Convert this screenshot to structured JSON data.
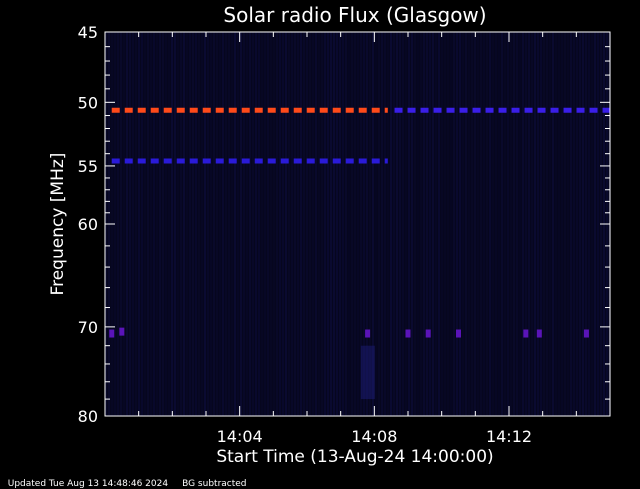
{
  "chart_data": {
    "type": "heatmap",
    "title": "Solar radio Flux (Glasgow)",
    "xlabel": "Start Time (13-Aug-24 14:00:00)",
    "ylabel": "Frequency [MHz]",
    "x_unit": "minutes after 14:00",
    "xlim": [
      0,
      15
    ],
    "ylim": [
      80,
      45
    ],
    "y_scale": "log",
    "x_ticks": [
      {
        "value": 4,
        "label": "14:04"
      },
      {
        "value": 8,
        "label": "14:08"
      },
      {
        "value": 12,
        "label": "14:12"
      }
    ],
    "y_ticks": [
      {
        "value": 45,
        "label": "45"
      },
      {
        "value": 50,
        "label": "50"
      },
      {
        "value": 55,
        "label": "55"
      },
      {
        "value": 60,
        "label": "60"
      },
      {
        "value": 70,
        "label": "70"
      },
      {
        "value": 80,
        "label": "80"
      }
    ],
    "bands": [
      {
        "frequency": 50.6,
        "x_start": 0.2,
        "x_end": 8.4,
        "color": "#ff4a1a"
      },
      {
        "frequency": 50.6,
        "x_start": 8.6,
        "x_end": 15.0,
        "color": "#3a1ee8"
      },
      {
        "frequency": 54.6,
        "x_start": 0.2,
        "x_end": 8.4,
        "color": "#2a1ad8"
      }
    ],
    "spots": [
      {
        "x": 0.2,
        "frequency": 70.7,
        "color": "#5a14b8"
      },
      {
        "x": 0.5,
        "frequency": 70.5,
        "color": "#5a14b8"
      },
      {
        "x": 7.8,
        "frequency": 70.7,
        "color": "#5a14b8"
      },
      {
        "x": 9.0,
        "frequency": 70.7,
        "color": "#5a14b8"
      },
      {
        "x": 9.6,
        "frequency": 70.7,
        "color": "#5a14b8"
      },
      {
        "x": 10.5,
        "frequency": 70.7,
        "color": "#5a14b8"
      },
      {
        "x": 12.5,
        "frequency": 70.7,
        "color": "#5a14b8"
      },
      {
        "x": 12.9,
        "frequency": 70.7,
        "color": "#5a14b8"
      },
      {
        "x": 14.3,
        "frequency": 70.7,
        "color": "#5a14b8"
      }
    ],
    "background_color": "#06061e",
    "grid": false
  },
  "footer": {
    "updated": "Updated Tue Aug 13 14:48:46 2024",
    "note": "BG subtracted"
  }
}
